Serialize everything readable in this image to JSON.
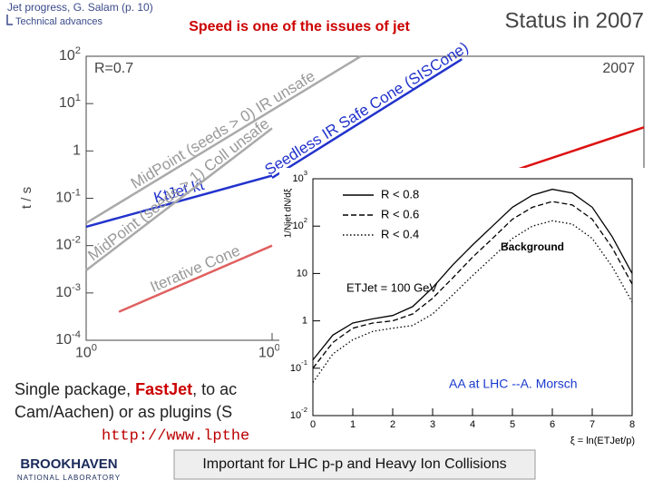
{
  "header": {
    "author": "Jet progress, G. Salam (p. 10)",
    "section": "Technical advances",
    "title": "Speed is one of the issues of jet",
    "status": "Status in 2007"
  },
  "body_text": [
    "Single package, ",
    "FastJet",
    ", to ac",
    "Cam/Aachen) or as plugins (S",
    "http://www.lpthe"
  ],
  "footer": {
    "logo": "BROOKHAVEN",
    "logo_sub": "NATIONAL LABORATORY",
    "caption": "Important for LHC p-p and Heavy Ion Collisions"
  },
  "chart_data": [
    {
      "type": "line",
      "xlog": true,
      "ylog": true,
      "y_label": "t / s",
      "annotations": [
        "R=0.7",
        "2007"
      ],
      "xlim": [
        100,
        100000
      ],
      "ylim": [
        0.0001,
        100
      ],
      "xticks": [
        100,
        1000
      ],
      "yticks": [
        {
          "value": 0.0001,
          "label": "10-4"
        },
        {
          "value": 0.001,
          "label": "10-3"
        },
        {
          "value": 0.01,
          "label": "10-2"
        },
        {
          "value": 0.1,
          "label": "10-1"
        },
        1,
        {
          "value": 10,
          "label": "101"
        },
        {
          "value": 100,
          "label": "102"
        }
      ],
      "series": [
        {
          "name": "MidPoint (seeds > 0) IR unsafe",
          "color": "#aaaaaa",
          "x": [
            100,
            3000
          ],
          "values": [
            0.03,
            100
          ]
        },
        {
          "name": "KtJet kt",
          "color": "#2233cc",
          "x": [
            100,
            1000
          ],
          "values": [
            0.025,
            0.3
          ]
        },
        {
          "name": "MidPoint (seeds > 1) Coll unsafe",
          "color": "#aaaaaa",
          "x": [
            100,
            1000
          ],
          "values": [
            0.003,
            3
          ]
        },
        {
          "name": "Iterative Cone",
          "color": "#e06060",
          "x": [
            150,
            1000
          ],
          "values": [
            0.0004,
            0.01
          ]
        },
        {
          "name": "Seedless IR Safe Cone (SISCone)",
          "color": "#2233cc",
          "x": [
            1000,
            10500
          ],
          "values": [
            0.27,
            87
          ]
        },
        {
          "color": "#dd1111",
          "x": [
            18600,
            100000
          ],
          "values": [
            0.35,
            3.16
          ]
        }
      ]
    },
    {
      "type": "line",
      "ylog": true,
      "x_label": "ξ = ln(ETJet/p)",
      "y_label": "1/Njet dN/dξ",
      "annotations": [
        "Background",
        "ETJet = 100 GeV",
        "AA at LHC --A. Morsch"
      ],
      "xlim": [
        0,
        8
      ],
      "ylim": [
        0.01,
        1000
      ],
      "xticks": [
        0,
        1,
        2,
        3,
        4,
        5,
        6,
        7,
        8
      ],
      "yticks": [
        {
          "value": 0.01,
          "label": "10-2"
        },
        {
          "value": 0.1,
          "label": "10-1"
        },
        1,
        10,
        {
          "value": 100,
          "label": "102"
        },
        {
          "value": 1000,
          "label": "103"
        }
      ],
      "x": [
        0,
        0.5,
        1,
        1.5,
        2,
        2.5,
        3,
        3.5,
        4,
        4.5,
        5,
        5.5,
        6,
        6.5,
        7,
        7.5,
        8
      ],
      "series": [
        {
          "name": "R < 0.8",
          "color": "#000000",
          "dash": "solid",
          "values": [
            0.15,
            0.5,
            0.9,
            1.1,
            1.3,
            2,
            5,
            15,
            40,
            100,
            250,
            450,
            600,
            500,
            250,
            60,
            10
          ]
        },
        {
          "name": "R < 0.6",
          "color": "#000000",
          "dash": "dashed",
          "values": [
            0.1,
            0.35,
            0.7,
            0.9,
            1.0,
            1.4,
            3,
            8,
            22,
            55,
            140,
            250,
            330,
            280,
            140,
            35,
            6
          ]
        },
        {
          "name": "R < 0.4",
          "color": "#000000",
          "dash": "dotted",
          "values": [
            0.05,
            0.2,
            0.4,
            0.6,
            0.7,
            0.8,
            1.4,
            3.5,
            9,
            22,
            55,
            100,
            130,
            110,
            55,
            14,
            2.5
          ]
        }
      ]
    }
  ]
}
